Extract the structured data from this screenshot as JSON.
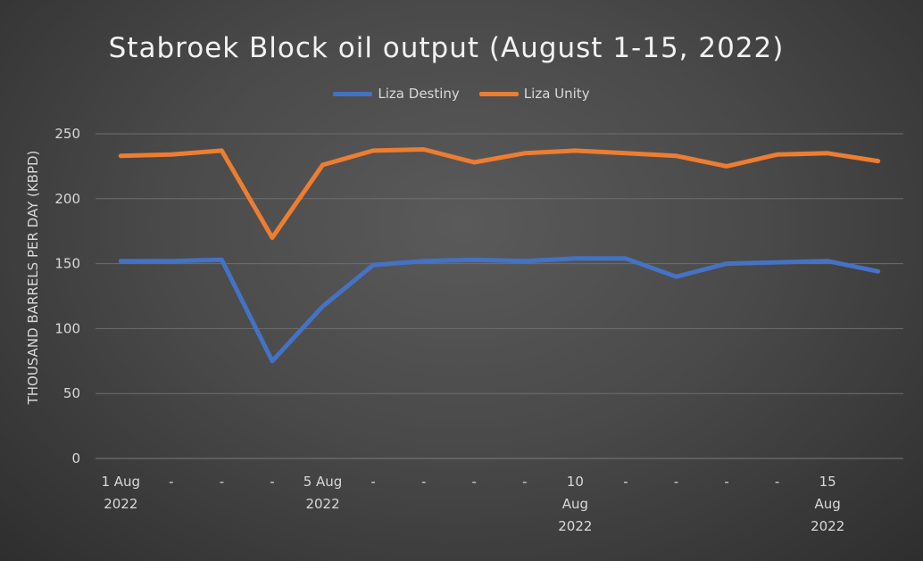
{
  "chart_data": {
    "type": "line",
    "title": "Stabroek Block oil output (August 1-15, 2022)",
    "ylabel": "THOUSAND BARRELS PER DAY (KBPD)",
    "xlabel": "",
    "ylim": [
      0,
      250
    ],
    "yticks": [
      0,
      50,
      100,
      150,
      200,
      250
    ],
    "grid": true,
    "legend_position": "top",
    "categories": [
      [
        "1 Aug",
        "2022"
      ],
      [
        "-"
      ],
      [
        "-"
      ],
      [
        "-"
      ],
      [
        "5 Aug",
        "2022"
      ],
      [
        "-"
      ],
      [
        "-"
      ],
      [
        "-"
      ],
      [
        "-"
      ],
      [
        "10",
        "Aug",
        "2022"
      ],
      [
        "-"
      ],
      [
        "-"
      ],
      [
        "-"
      ],
      [
        "-"
      ],
      [
        "15",
        "Aug",
        "2022"
      ],
      []
    ],
    "series": [
      {
        "name": "Liza Destiny",
        "color": "#4472c4",
        "values": [
          152,
          152,
          153,
          75,
          117,
          149,
          152,
          153,
          152,
          154,
          154,
          140,
          150,
          151,
          152,
          144
        ]
      },
      {
        "name": "Liza Unity",
        "color": "#ed7d31",
        "values": [
          233,
          234,
          237,
          170,
          226,
          237,
          238,
          228,
          235,
          237,
          235,
          233,
          225,
          234,
          235,
          229
        ]
      }
    ]
  }
}
